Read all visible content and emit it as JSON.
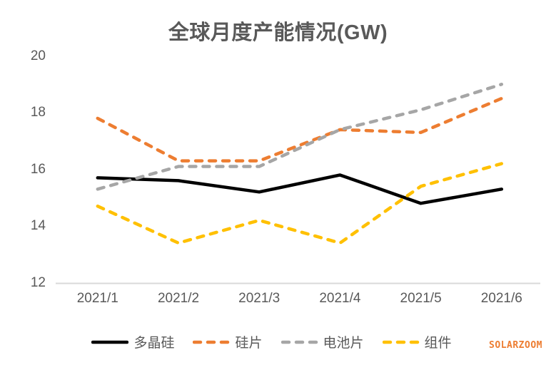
{
  "chart": {
    "title": "全球月度产能情况(GW)"
  },
  "watermark": {
    "text": "SOLARZOOM"
  },
  "chart_data": {
    "type": "line",
    "title": "全球月度产能情况(GW)",
    "categories": [
      "2021/1",
      "2021/2",
      "2021/3",
      "2021/4",
      "2021/5",
      "2021/6"
    ],
    "series": [
      {
        "name": "多晶硅",
        "color": "#000000",
        "dash": false,
        "values": [
          15.7,
          15.6,
          15.2,
          15.8,
          14.8,
          15.3
        ]
      },
      {
        "name": "硅片",
        "color": "#ED7D31",
        "dash": true,
        "values": [
          17.8,
          16.3,
          16.3,
          17.4,
          17.3,
          18.5
        ]
      },
      {
        "name": "电池片",
        "color": "#A6A6A6",
        "dash": true,
        "values": [
          15.3,
          16.1,
          16.1,
          17.4,
          18.1,
          19.0
        ]
      },
      {
        "name": "组件",
        "color": "#FFC000",
        "dash": true,
        "values": [
          14.7,
          13.4,
          14.2,
          13.4,
          15.4,
          16.2
        ]
      }
    ],
    "xlabel": "",
    "ylabel": "",
    "ylim": [
      12,
      20
    ],
    "yticks": [
      12,
      14,
      16,
      18,
      20
    ],
    "grid": false,
    "legend_position": "bottom",
    "axis_color": "#D9D9D9",
    "label_color": "#595959",
    "background": "#ffffff"
  }
}
